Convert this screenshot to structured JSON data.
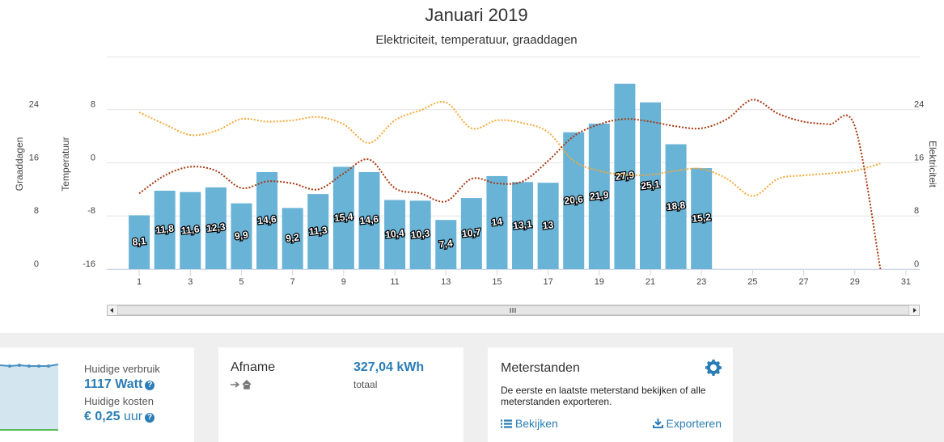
{
  "chart_data": {
    "type": "bar",
    "title": "Januari 2019",
    "subtitle": "Elektriciteit, temperatuur, graaddagen",
    "x": [
      1,
      2,
      3,
      4,
      5,
      6,
      7,
      8,
      9,
      10,
      11,
      12,
      13,
      14,
      15,
      16,
      17,
      18,
      19,
      20,
      21,
      22,
      23,
      24,
      25,
      26,
      27,
      28,
      29,
      30,
      31
    ],
    "xlim": [
      -0.27,
      31.54
    ],
    "xticks": [
      1,
      3,
      5,
      7,
      9,
      11,
      13,
      15,
      17,
      19,
      21,
      23,
      25,
      27,
      29,
      31
    ],
    "axes": [
      {
        "label": "Graaddagen",
        "side": "left",
        "ylim": [
          0,
          32
        ],
        "yticks": [
          0,
          8,
          16,
          24
        ],
        "grid": true
      },
      {
        "label": "Temperatuur",
        "side": "left",
        "ylim": [
          -16,
          16
        ],
        "yticks": [
          -16,
          -8,
          0,
          8
        ],
        "grid": false
      },
      {
        "label": "Elektriciteit",
        "side": "right",
        "ylim": [
          0,
          32
        ],
        "yticks": [
          0,
          8,
          16,
          24
        ],
        "grid": false
      }
    ],
    "series": [
      {
        "type": "bar",
        "axis": 2,
        "color": "#69b3d6",
        "values": [
          8.1,
          11.8,
          11.6,
          12.3,
          9.9,
          14.6,
          9.2,
          11.3,
          15.4,
          14.6,
          10.4,
          10.3,
          7.4,
          10.7,
          14,
          13.1,
          13,
          20.6,
          21.9,
          27.9,
          25.1,
          18.8,
          15.2,
          null,
          null,
          null,
          null,
          null,
          null,
          null,
          null
        ],
        "value_labels": [
          "8,1",
          "11,8",
          "11,6",
          "12,3",
          "9,9",
          "14,6",
          "9,2",
          "11,3",
          "15,4",
          "14,6",
          "10,4",
          "10,3",
          "7,4",
          "10,7",
          "14",
          "13,1",
          "13",
          "20,6",
          "21,9",
          "27,9",
          "25,1",
          "18,8",
          "15,2",
          null,
          null,
          null,
          null,
          null,
          null,
          null,
          null
        ]
      },
      {
        "type": "line",
        "axis": 1,
        "color": "#f5a93a",
        "values": [
          7.6,
          5.8,
          4.2,
          4.8,
          6.6,
          6.2,
          6.4,
          6.9,
          5.8,
          3.0,
          6.4,
          7.9,
          9.1,
          5.2,
          6.4,
          6.0,
          4.6,
          0.3,
          -1.2,
          -1.8,
          -1.8,
          -1.2,
          -0.9,
          -2.4,
          -5.0,
          -2.4,
          -1.9,
          -1.6,
          -1.2,
          -0.1,
          null
        ]
      },
      {
        "type": "line",
        "axis": 0,
        "color": "#a8380f",
        "values": [
          11.4,
          14.1,
          15.4,
          14.8,
          12.2,
          13.2,
          12.9,
          12.0,
          14.4,
          16.5,
          12.2,
          11.4,
          10.2,
          13.6,
          12.9,
          13.2,
          16.3,
          20.0,
          21.8,
          22.6,
          22.2,
          21.5,
          21.2,
          22.6,
          25.5,
          23.4,
          22.2,
          21.8,
          21.5,
          0,
          null
        ]
      }
    ]
  },
  "cards": {
    "current": {
      "usage_label": "Huidige verbruik",
      "usage": "1117 Watt",
      "cost_label": "Huidige kosten",
      "cost": "€ 0,25",
      "cost_unit": "uur"
    },
    "afname": {
      "title": "Afname",
      "value": "327,04 kWh",
      "note": "totaal"
    },
    "meterstanden": {
      "title": "Meterstanden",
      "text": "De eerste en laatste meterstand bekijken of alle meterstanden exporteren.",
      "view": "Bekijken",
      "export": "Exporteren"
    }
  }
}
